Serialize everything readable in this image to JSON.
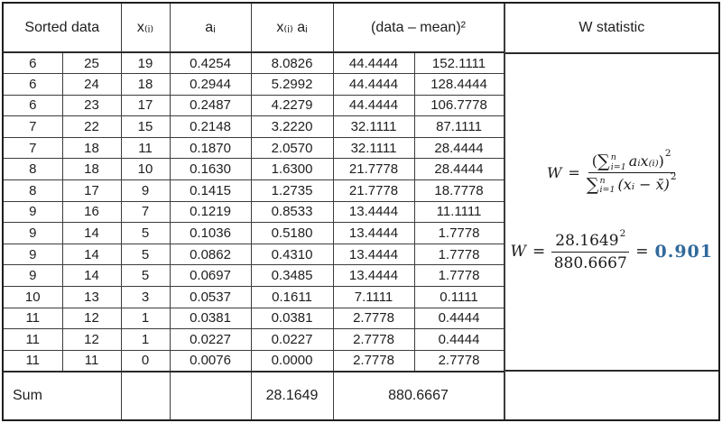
{
  "table": {
    "headers": {
      "sorted_data": "Sorted data",
      "x_i": "x₍ᵢ₎",
      "a_i": "aᵢ",
      "x_i_a_i": "x₍ᵢ₎ aᵢ",
      "squared_dev": "(data – mean)²",
      "w_statistic": "W statistic"
    },
    "rows": [
      [
        "6",
        "25",
        "19",
        "0.4254",
        "8.0826",
        "44.4444",
        "152.1111"
      ],
      [
        "6",
        "24",
        "18",
        "0.2944",
        "5.2992",
        "44.4444",
        "128.4444"
      ],
      [
        "6",
        "23",
        "17",
        "0.2487",
        "4.2279",
        "44.4444",
        "106.7778"
      ],
      [
        "7",
        "22",
        "15",
        "0.2148",
        "3.2220",
        "32.1111",
        "87.1111"
      ],
      [
        "7",
        "18",
        "11",
        "0.1870",
        "2.0570",
        "32.1111",
        "28.4444"
      ],
      [
        "8",
        "18",
        "10",
        "0.1630",
        "1.6300",
        "21.7778",
        "28.4444"
      ],
      [
        "8",
        "17",
        "9",
        "0.1415",
        "1.2735",
        "21.7778",
        "18.7778"
      ],
      [
        "9",
        "16",
        "7",
        "0.1219",
        "0.8533",
        "13.4444",
        "11.1111"
      ],
      [
        "9",
        "14",
        "5",
        "0.1036",
        "0.5180",
        "13.4444",
        "1.7778"
      ],
      [
        "9",
        "14",
        "5",
        "0.0862",
        "0.4310",
        "13.4444",
        "1.7778"
      ],
      [
        "9",
        "14",
        "5",
        "0.0697",
        "0.3485",
        "13.4444",
        "1.7778"
      ],
      [
        "10",
        "13",
        "3",
        "0.0537",
        "0.1611",
        "7.1111",
        "0.1111"
      ],
      [
        "11",
        "12",
        "1",
        "0.0381",
        "0.0381",
        "2.7778",
        "0.4444"
      ],
      [
        "11",
        "12",
        "1",
        "0.0227",
        "0.0227",
        "2.7778",
        "0.4444"
      ],
      [
        "11",
        "11",
        "0",
        "0.0076",
        "0.0000",
        "2.7778",
        "2.7778"
      ]
    ],
    "sum_row": {
      "label": "Sum",
      "x_a_sum": "28.1649",
      "squared_dev_sum": "880.6667"
    }
  },
  "formulas": {
    "general": {
      "lhs": "W",
      "equals": "=",
      "num_open": "(",
      "sigma": "∑",
      "sum_sup": "n",
      "sum_sub": "i=1",
      "num_term": "aᵢx₍ᵢ₎",
      "num_close": ")",
      "num_power": "2",
      "den_sigma": "∑",
      "den_sup": "n",
      "den_sub": "i=1",
      "den_term": "(xᵢ − x̄)",
      "den_power": "2"
    },
    "computed": {
      "lhs": "W",
      "equals": "=",
      "numerator": "28.1649",
      "num_power": "2",
      "denominator": "880.6667",
      "equals2": "=",
      "result": "0.901"
    }
  },
  "colors": {
    "result_blue": "#31699b",
    "grid_line": "#3c3c3c",
    "outer_border": "#1e1e1e"
  }
}
